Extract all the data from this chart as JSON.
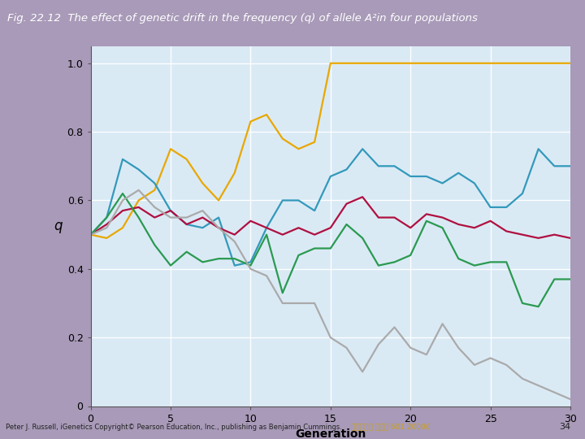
{
  "title": "Fig. 22.12  The effect of genetic drift in the frequency (q) of allele A²in four populations",
  "title_bg": "#3b1054",
  "title_color": "#ffffff",
  "xlabel": "Generation",
  "ylabel": "q",
  "xlim": [
    0,
    30
  ],
  "ylim": [
    0,
    1.05
  ],
  "xticks": [
    0,
    5,
    10,
    15,
    20,
    25,
    30
  ],
  "yticks": [
    0,
    0.2,
    0.4,
    0.6,
    0.8,
    1.0
  ],
  "fig_bg": "#a89ab8",
  "plot_bg": "#daeaf5",
  "footer_text": "Peter J. Russell, iGenetics Copyright© Pearson Education, Inc., publishing as Benjamin Cummings.",
  "footer_text2": "台大農藝系 遺傳學 601 20000",
  "page_num": "34",
  "lines": {
    "yellow": {
      "color": "#e8a800",
      "x": [
        0,
        1,
        2,
        3,
        4,
        5,
        6,
        7,
        8,
        9,
        10,
        11,
        12,
        13,
        14,
        15,
        16,
        17,
        18,
        19,
        20,
        21,
        22,
        23,
        24,
        25,
        26,
        27,
        28,
        29,
        30
      ],
      "y": [
        0.5,
        0.49,
        0.52,
        0.6,
        0.63,
        0.75,
        0.72,
        0.65,
        0.6,
        0.68,
        0.83,
        0.85,
        0.78,
        0.75,
        0.77,
        1.0,
        1.0,
        1.0,
        1.0,
        1.0,
        1.0,
        1.0,
        1.0,
        1.0,
        1.0,
        1.0,
        1.0,
        1.0,
        1.0,
        1.0,
        1.0
      ]
    },
    "blue": {
      "color": "#3399bb",
      "x": [
        0,
        1,
        2,
        3,
        4,
        5,
        6,
        7,
        8,
        9,
        10,
        11,
        12,
        13,
        14,
        15,
        16,
        17,
        18,
        19,
        20,
        21,
        22,
        23,
        24,
        25,
        26,
        27,
        28,
        29,
        30
      ],
      "y": [
        0.5,
        0.55,
        0.72,
        0.69,
        0.65,
        0.57,
        0.53,
        0.52,
        0.55,
        0.41,
        0.42,
        0.52,
        0.6,
        0.6,
        0.57,
        0.67,
        0.69,
        0.75,
        0.7,
        0.7,
        0.67,
        0.67,
        0.65,
        0.68,
        0.65,
        0.58,
        0.58,
        0.62,
        0.75,
        0.7,
        0.7
      ]
    },
    "red": {
      "color": "#b01040",
      "x": [
        0,
        1,
        2,
        3,
        4,
        5,
        6,
        7,
        8,
        9,
        10,
        11,
        12,
        13,
        14,
        15,
        16,
        17,
        18,
        19,
        20,
        21,
        22,
        23,
        24,
        25,
        26,
        27,
        28,
        29,
        30
      ],
      "y": [
        0.5,
        0.53,
        0.57,
        0.58,
        0.55,
        0.57,
        0.53,
        0.55,
        0.52,
        0.5,
        0.54,
        0.52,
        0.5,
        0.52,
        0.5,
        0.52,
        0.59,
        0.61,
        0.55,
        0.55,
        0.52,
        0.56,
        0.55,
        0.53,
        0.52,
        0.54,
        0.51,
        0.5,
        0.49,
        0.5,
        0.49
      ]
    },
    "green": {
      "color": "#2a9a50",
      "x": [
        0,
        1,
        2,
        3,
        4,
        5,
        6,
        7,
        8,
        9,
        10,
        11,
        12,
        13,
        14,
        15,
        16,
        17,
        18,
        19,
        20,
        21,
        22,
        23,
        24,
        25,
        26,
        27,
        28,
        29,
        30
      ],
      "y": [
        0.5,
        0.55,
        0.62,
        0.55,
        0.47,
        0.41,
        0.45,
        0.42,
        0.43,
        0.43,
        0.41,
        0.5,
        0.33,
        0.44,
        0.46,
        0.46,
        0.53,
        0.49,
        0.41,
        0.42,
        0.44,
        0.54,
        0.52,
        0.43,
        0.41,
        0.42,
        0.42,
        0.3,
        0.29,
        0.37,
        0.37
      ]
    },
    "gray": {
      "color": "#aaaaaa",
      "x": [
        0,
        1,
        2,
        3,
        4,
        5,
        6,
        7,
        8,
        9,
        10,
        11,
        12,
        13,
        14,
        15,
        16,
        17,
        18,
        19,
        20,
        21,
        22,
        23,
        24,
        25,
        26,
        27,
        28,
        29,
        30
      ],
      "y": [
        0.5,
        0.52,
        0.6,
        0.63,
        0.58,
        0.55,
        0.55,
        0.57,
        0.52,
        0.48,
        0.4,
        0.38,
        0.3,
        0.3,
        0.3,
        0.2,
        0.17,
        0.1,
        0.18,
        0.23,
        0.17,
        0.15,
        0.24,
        0.17,
        0.12,
        0.14,
        0.12,
        0.08,
        0.06,
        0.04,
        0.02
      ]
    }
  }
}
